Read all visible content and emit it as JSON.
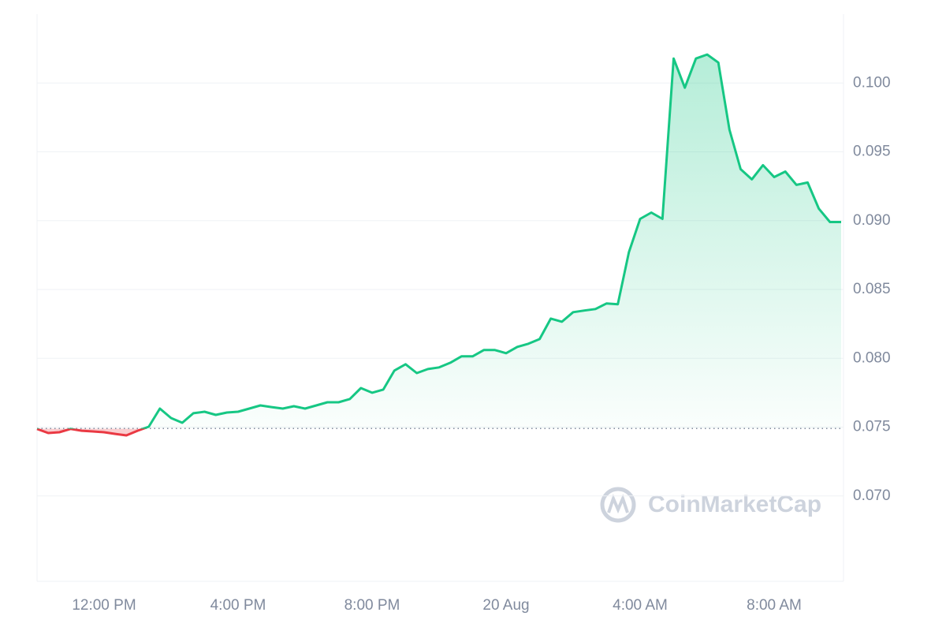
{
  "chart_data": {
    "type": "line",
    "categories": [
      null,
      null,
      null,
      null,
      null,
      null,
      "12:00 PM",
      null,
      null,
      null,
      null,
      null,
      null,
      null,
      null,
      null,
      null,
      null,
      "4:00 PM",
      null,
      null,
      null,
      null,
      null,
      null,
      null,
      null,
      null,
      null,
      null,
      "8:00 PM",
      null,
      null,
      null,
      null,
      null,
      null,
      null,
      null,
      null,
      null,
      null,
      "20 Aug",
      null,
      null,
      null,
      null,
      null,
      null,
      null,
      null,
      null,
      null,
      null,
      "4:00 AM",
      null,
      null,
      null,
      null,
      null,
      null,
      null,
      null,
      null,
      null,
      null,
      "8:00 AM",
      null,
      null,
      null,
      null,
      null,
      null
    ],
    "values": [
      0.07487,
      0.07457,
      0.07463,
      0.07487,
      0.07474,
      0.07469,
      0.07463,
      0.07451,
      0.0744,
      0.07474,
      0.07503,
      0.07635,
      0.07566,
      0.07532,
      0.07601,
      0.07612,
      0.07589,
      0.07606,
      0.07612,
      0.07635,
      0.07658,
      0.07646,
      0.07635,
      0.07652,
      0.07635,
      0.07658,
      0.07681,
      0.07681,
      0.07704,
      0.07784,
      0.0775,
      0.07773,
      0.07911,
      0.07957,
      0.07893,
      0.07922,
      0.07934,
      0.07968,
      0.08014,
      0.08014,
      0.0806,
      0.0806,
      0.08037,
      0.08083,
      0.08106,
      0.0814,
      0.08289,
      0.08266,
      0.08335,
      0.08347,
      0.08358,
      0.08399,
      0.08393,
      0.08772,
      0.09013,
      0.09059,
      0.09013,
      0.10178,
      0.09966,
      0.10178,
      0.10207,
      0.10149,
      0.09661,
      0.09374,
      0.093,
      0.09403,
      0.09317,
      0.09357,
      0.0926,
      0.09277,
      0.09087,
      0.0899,
      0.0899
    ],
    "baseline": 0.0749,
    "color": "#16c784",
    "down_color": "#ea3943",
    "ylim": [
      0.0638,
      0.105
    ],
    "yticks": [
      {
        "value": 0.07,
        "label": "0.070"
      },
      {
        "value": 0.075,
        "label": "0.075"
      },
      {
        "value": 0.08,
        "label": "0.080"
      },
      {
        "value": 0.085,
        "label": "0.085"
      },
      {
        "value": 0.09,
        "label": "0.090"
      },
      {
        "value": 0.095,
        "label": "0.095"
      },
      {
        "value": 0.1,
        "label": "0.100"
      }
    ],
    "grid": true,
    "watermark": "CoinMarketCap"
  }
}
